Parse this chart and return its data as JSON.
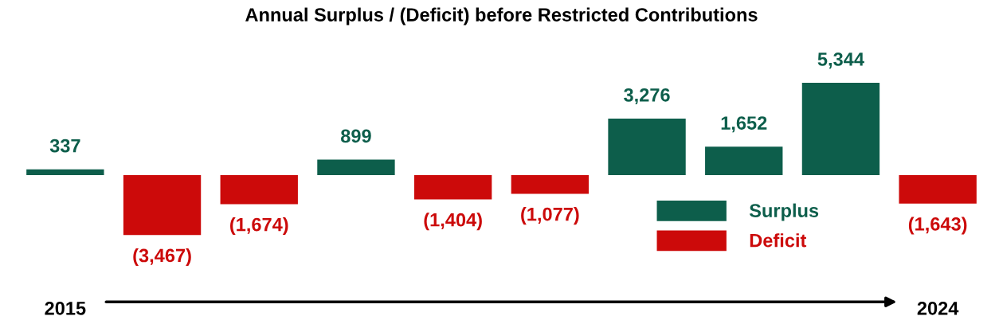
{
  "chart_data": {
    "type": "bar",
    "title": "Annual Surplus / (Deficit) before Restricted Contributions",
    "categories": [
      "2015",
      null,
      null,
      null,
      null,
      null,
      null,
      null,
      null,
      "2024"
    ],
    "series": [
      {
        "name": "Surplus",
        "color": "#0d5e4b",
        "values": [
          337,
          null,
          null,
          899,
          null,
          null,
          3276,
          1652,
          5344,
          null
        ],
        "value_labels": [
          "337",
          null,
          null,
          "899",
          null,
          null,
          "3,276",
          "1,652",
          "5,344",
          null
        ]
      },
      {
        "name": "Deficit",
        "color": "#cc0a0a",
        "values": [
          null,
          -3467,
          -1674,
          null,
          -1404,
          -1077,
          null,
          null,
          null,
          -1643
        ],
        "value_labels": [
          null,
          "(3,467)",
          "(1,674)",
          null,
          "(1,404)",
          "(1,077)",
          null,
          null,
          null,
          "(1,643)"
        ]
      }
    ],
    "legend": "bottom right",
    "grid": false
  }
}
